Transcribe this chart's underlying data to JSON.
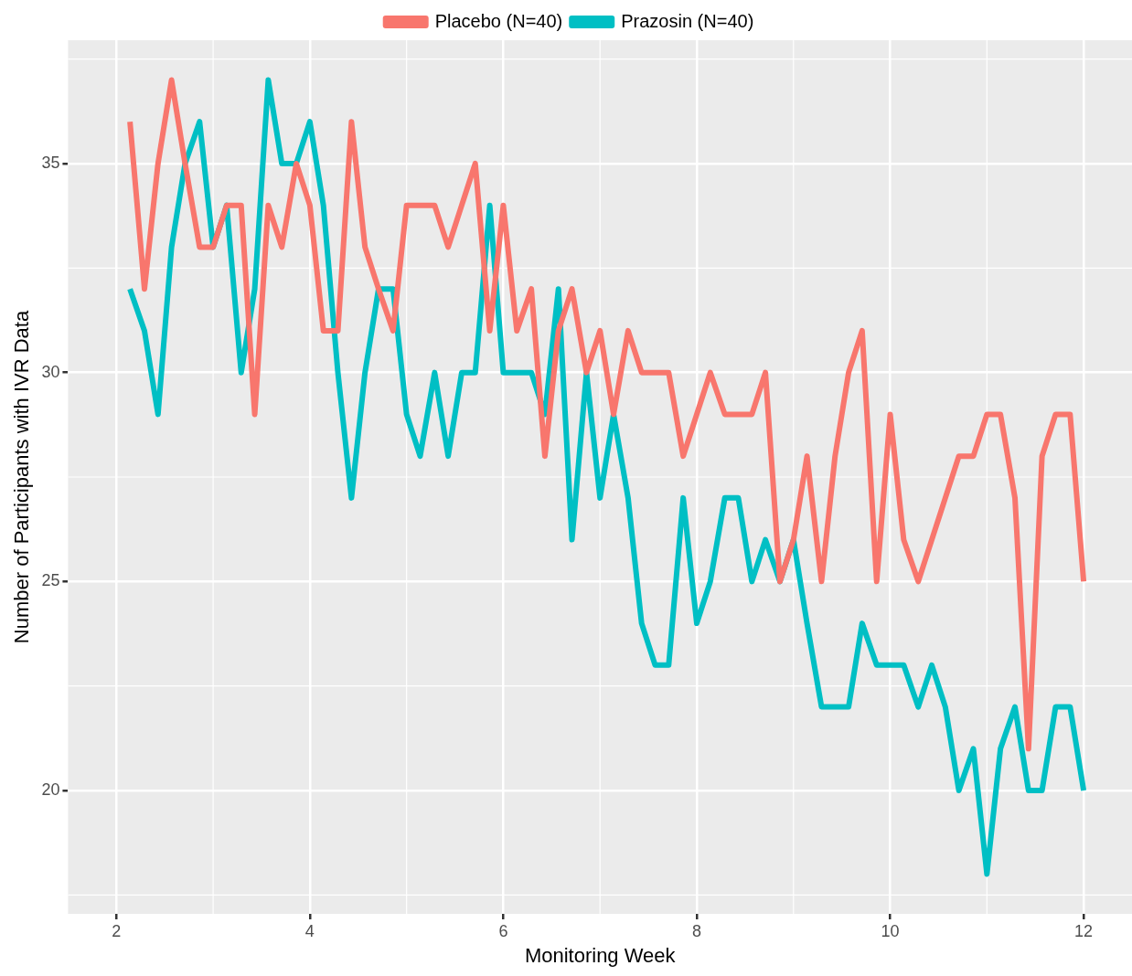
{
  "chart_data": {
    "type": "line",
    "xlabel": "Monitoring Week",
    "ylabel": "Number of Participants with IVR Data",
    "x": [
      2.14,
      2.29,
      2.43,
      2.57,
      2.71,
      2.86,
      3,
      3.14,
      3.29,
      3.43,
      3.57,
      3.71,
      3.86,
      4,
      4.14,
      4.29,
      4.43,
      4.57,
      4.71,
      4.86,
      5,
      5.14,
      5.29,
      5.43,
      5.57,
      5.71,
      5.86,
      6,
      6.14,
      6.29,
      6.43,
      6.57,
      6.71,
      6.86,
      7,
      7.14,
      7.29,
      7.43,
      7.57,
      7.71,
      7.86,
      8,
      8.14,
      8.29,
      8.43,
      8.57,
      8.71,
      8.86,
      9,
      9.14,
      9.29,
      9.43,
      9.57,
      9.71,
      9.86,
      10,
      10.14,
      10.29,
      10.43,
      10.57,
      10.71,
      10.86,
      11,
      11.14,
      11.29,
      11.43,
      11.57,
      11.71,
      11.86,
      12
    ],
    "series": [
      {
        "name": "Placebo (N=40)",
        "color": "#f8766d",
        "values": [
          36,
          32,
          35,
          37,
          35,
          33,
          33,
          34,
          34,
          29,
          34,
          33,
          35,
          34,
          31,
          31,
          36,
          33,
          32,
          31,
          34,
          34,
          34,
          33,
          34,
          35,
          31,
          34,
          31,
          32,
          28,
          31,
          32,
          30,
          31,
          29,
          31,
          30,
          30,
          30,
          28,
          29,
          30,
          29,
          29,
          29,
          30,
          25,
          26,
          28,
          25,
          28,
          30,
          31,
          25,
          29,
          26,
          25,
          26,
          27,
          28,
          28,
          29,
          29,
          27,
          21,
          28,
          29,
          29,
          25
        ]
      },
      {
        "name": "Prazosin (N=40)",
        "color": "#00bfc4",
        "values": [
          32,
          31,
          29,
          33,
          35,
          36,
          33,
          34,
          30,
          32,
          37,
          35,
          35,
          36,
          34,
          30,
          27,
          30,
          32,
          32,
          29,
          28,
          30,
          28,
          30,
          30,
          34,
          30,
          30,
          30,
          29,
          32,
          26,
          30,
          27,
          29,
          27,
          24,
          23,
          23,
          27,
          24,
          25,
          27,
          27,
          25,
          26,
          25,
          26,
          24,
          22,
          22,
          22,
          24,
          23,
          23,
          23,
          22,
          23,
          22,
          20,
          21,
          18,
          21,
          22,
          20,
          20,
          22,
          22,
          20
        ]
      }
    ],
    "xlim": [
      1.5,
      12.5
    ],
    "xticks": [
      2,
      4,
      6,
      8,
      10,
      12
    ],
    "ylim": [
      17.05,
      37.95
    ],
    "yticks": [
      20,
      25,
      30,
      35
    ],
    "grid": true,
    "legend": "top",
    "marker": "none",
    "line_style": "solid"
  }
}
